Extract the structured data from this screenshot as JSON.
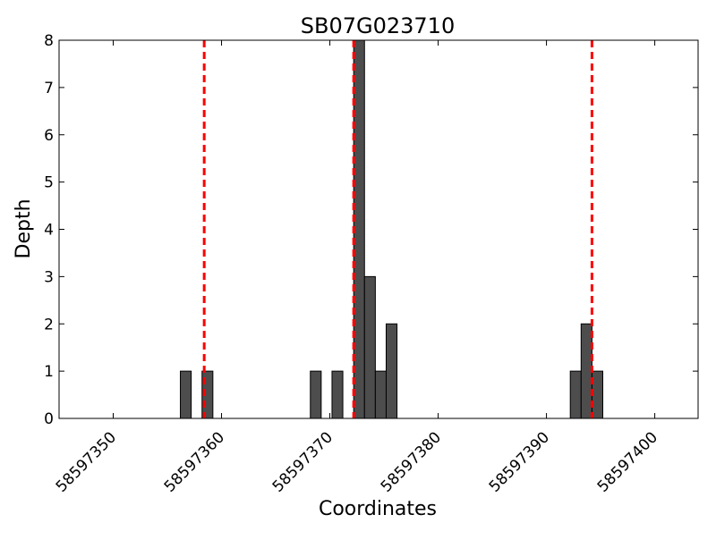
{
  "chart_data": {
    "type": "bar",
    "title": "SB07G023710",
    "xlabel": "Coordinates",
    "ylabel": "Depth",
    "xlim": [
      58597345,
      58597404
    ],
    "ylim": [
      0,
      8
    ],
    "x_ticks": [
      58597350,
      58597360,
      58597370,
      58597380,
      58597390,
      58597400
    ],
    "y_ticks": [
      0,
      1,
      2,
      3,
      4,
      5,
      6,
      7,
      8
    ],
    "bar_width": 1,
    "bars": [
      {
        "x": 58597356.2,
        "value": 1
      },
      {
        "x": 58597358.2,
        "value": 1
      },
      {
        "x": 58597368.2,
        "value": 1
      },
      {
        "x": 58597370.2,
        "value": 1
      },
      {
        "x": 58597372.2,
        "value": 8
      },
      {
        "x": 58597373.2,
        "value": 3
      },
      {
        "x": 58597374.2,
        "value": 1
      },
      {
        "x": 58597375.2,
        "value": 2
      },
      {
        "x": 58597392.2,
        "value": 1
      },
      {
        "x": 58597393.2,
        "value": 2
      },
      {
        "x": 58597394.2,
        "value": 1
      }
    ],
    "reference_lines": [
      58597358.4,
      58597372.2,
      58597394.2
    ],
    "colors": {
      "bar": "#4d4d4d",
      "bar_edge": "#000000",
      "reference_line": "#ff0000"
    },
    "grid": false,
    "legend": "none"
  }
}
